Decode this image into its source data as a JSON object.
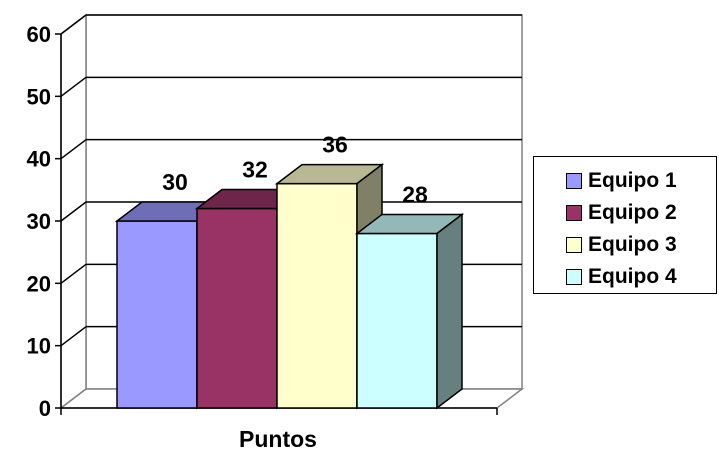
{
  "chart_data": {
    "type": "bar",
    "categories": [
      "Puntos"
    ],
    "xlabel": "Puntos",
    "ylabel": "",
    "ylim": [
      0,
      60
    ],
    "yticks": [
      0,
      10,
      20,
      30,
      40,
      50,
      60
    ],
    "grid": true,
    "legend_position": "right",
    "three_d": true,
    "series": [
      {
        "name": "Equipo 1",
        "values": [
          30
        ],
        "label": "30",
        "color": "#9999FF"
      },
      {
        "name": "Equipo 2",
        "values": [
          32
        ],
        "label": "32",
        "color": "#993366"
      },
      {
        "name": "Equipo 3",
        "values": [
          36
        ],
        "label": "36",
        "color": "#FFFFCC"
      },
      {
        "name": "Equipo 4",
        "values": [
          28
        ],
        "label": "28",
        "color": "#CCFFFF"
      }
    ]
  }
}
